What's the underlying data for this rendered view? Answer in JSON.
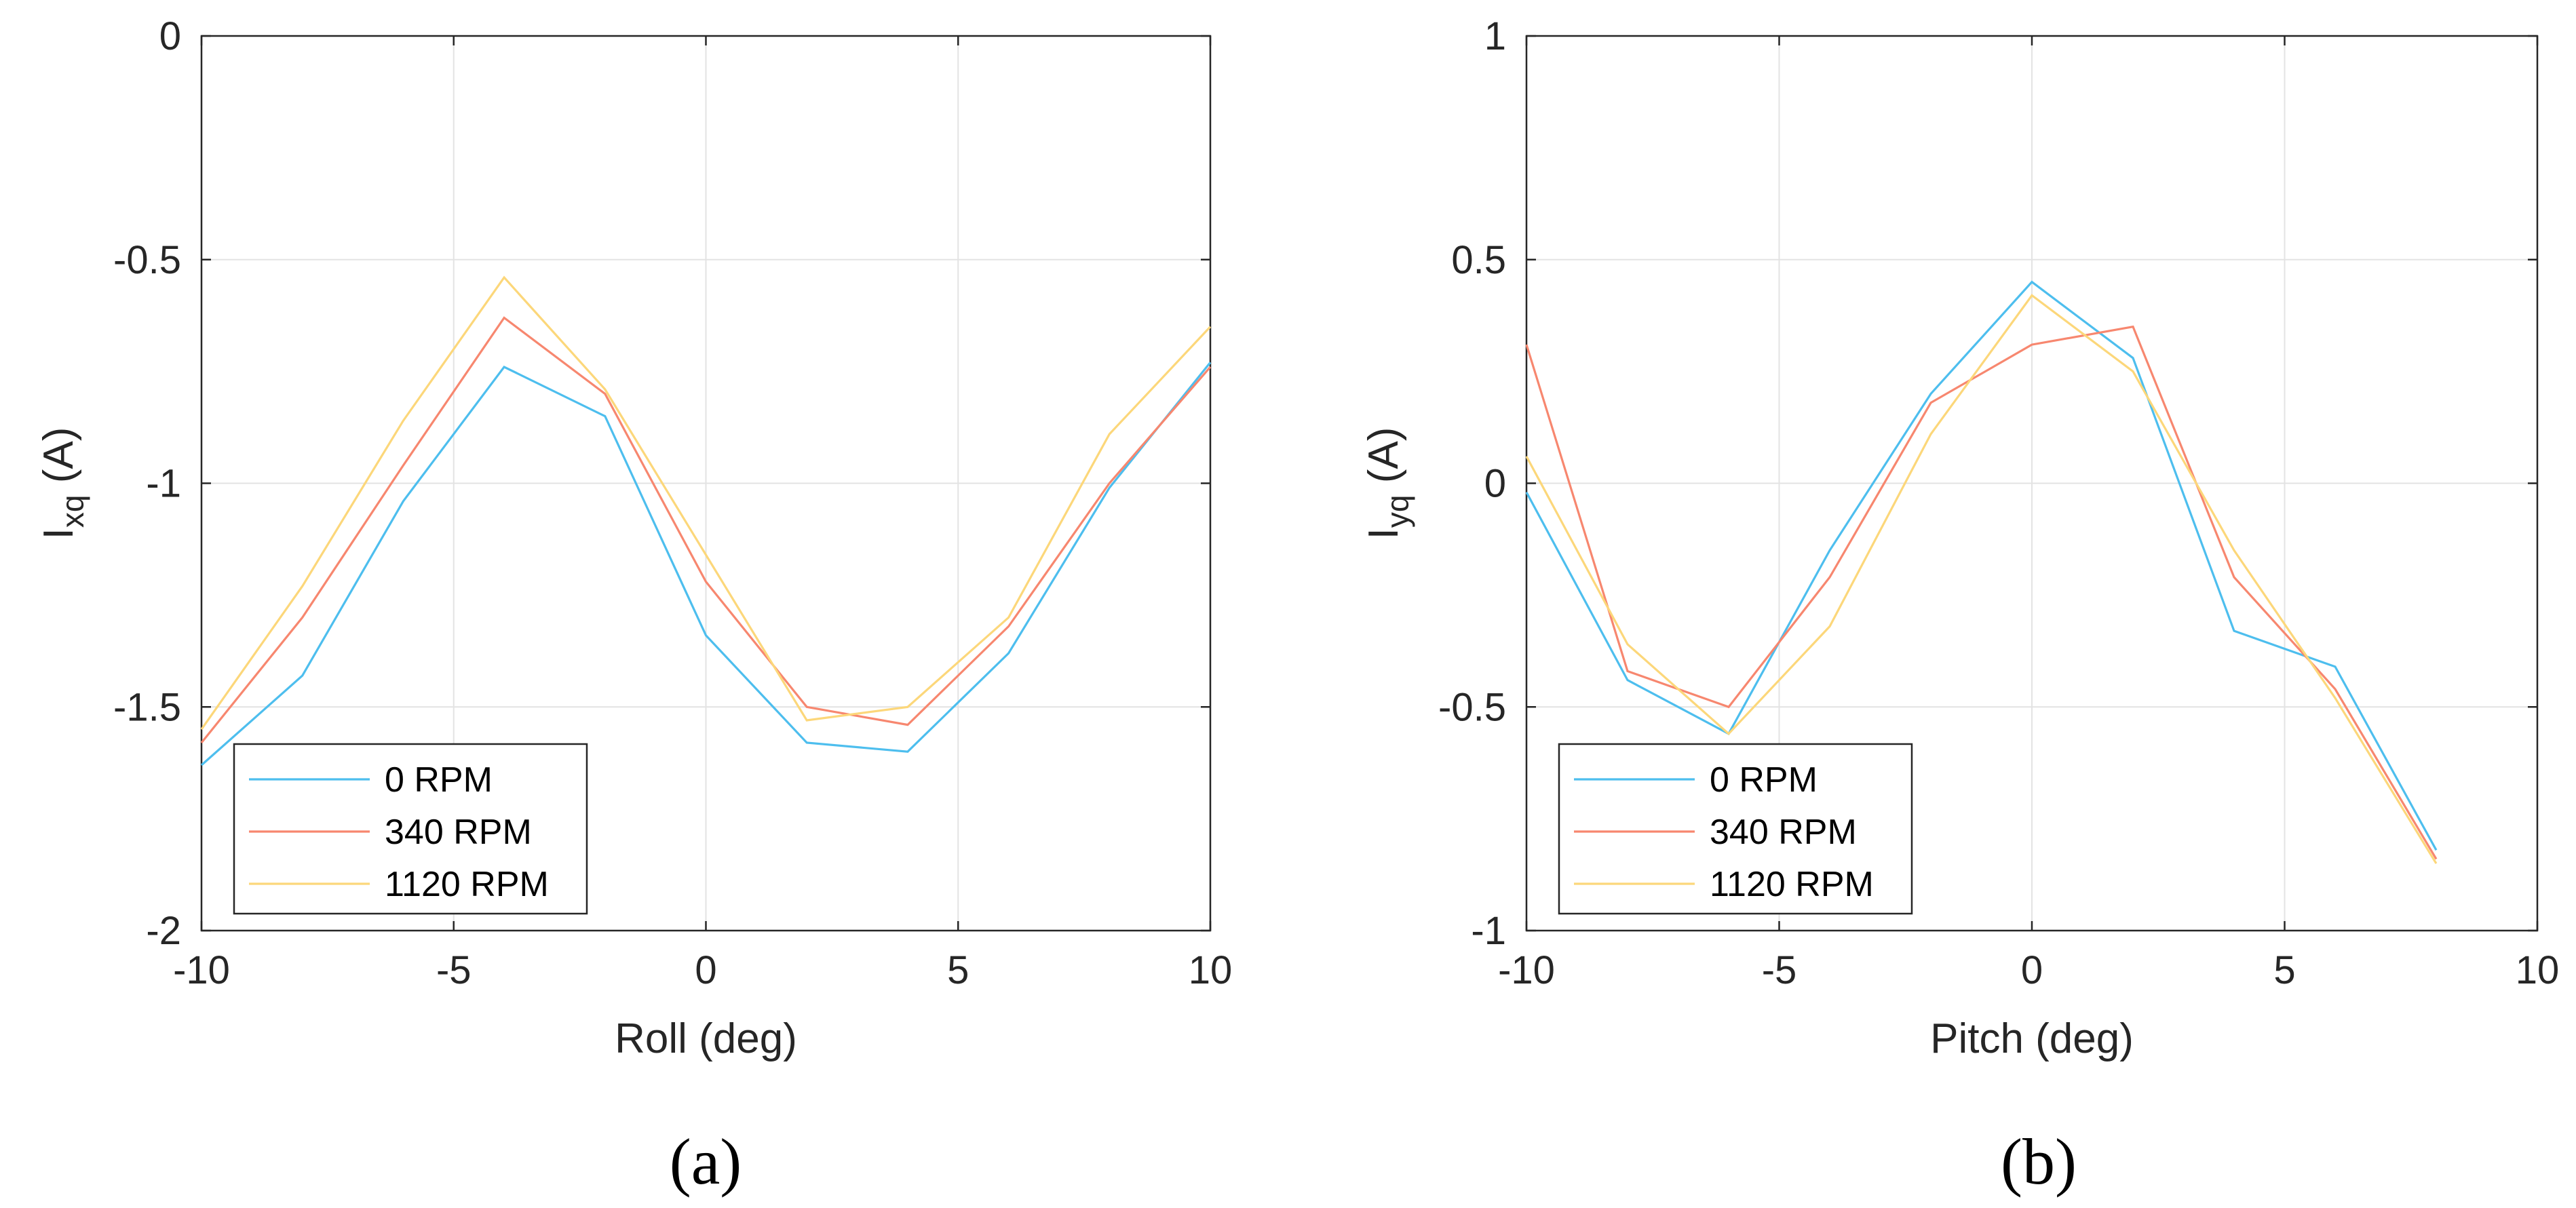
{
  "colors": {
    "series0": "#4DBEEE",
    "series1": "#F7876F",
    "series2": "#FCD77A"
  },
  "chart_data": [
    {
      "type": "line",
      "caption": "(a)",
      "xlabel": "Roll (deg)",
      "ylabel_main": "I",
      "ylabel_sub": "xq",
      "ylabel_unit": " (A)",
      "xlim": [
        -10,
        10
      ],
      "ylim": [
        -2,
        0
      ],
      "xticks": [
        -10,
        -5,
        0,
        5,
        10
      ],
      "yticks": [
        -2,
        -1.5,
        -1,
        -0.5,
        0
      ],
      "xtick_labels": [
        "-10",
        "-5",
        "0",
        "5",
        "10"
      ],
      "ytick_labels": [
        "-2",
        "-1.5",
        "-1",
        "-0.5",
        "0"
      ],
      "grid": true,
      "legend_position": "bottom-left",
      "x": [
        -10,
        -8,
        -6,
        -4,
        -2,
        0,
        2,
        4,
        6,
        8,
        10
      ],
      "series": [
        {
          "name": "0 RPM",
          "values": [
            -1.63,
            -1.43,
            -1.04,
            -0.74,
            -0.85,
            -1.34,
            -1.58,
            -1.6,
            -1.38,
            -1.01,
            -0.73
          ]
        },
        {
          "name": "340 RPM",
          "values": [
            -1.58,
            -1.3,
            -0.96,
            -0.63,
            -0.8,
            -1.22,
            -1.5,
            -1.54,
            -1.32,
            -1.0,
            -0.74
          ]
        },
        {
          "name": "1120 RPM",
          "values": [
            -1.55,
            -1.23,
            -0.86,
            -0.54,
            -0.79,
            -1.16,
            -1.53,
            -1.5,
            -1.3,
            -0.89,
            -0.65
          ]
        }
      ]
    },
    {
      "type": "line",
      "caption": "(b)",
      "xlabel": "Pitch (deg)",
      "ylabel_main": "I",
      "ylabel_sub": "yq",
      "ylabel_unit": " (A)",
      "xlim": [
        -10,
        10
      ],
      "ylim": [
        -1,
        1
      ],
      "xticks": [
        -10,
        -5,
        0,
        5,
        10
      ],
      "yticks": [
        -1,
        -0.5,
        0,
        0.5,
        1
      ],
      "xtick_labels": [
        "-10",
        "-5",
        "0",
        "5",
        "10"
      ],
      "ytick_labels": [
        "-1",
        "-0.5",
        "0",
        "0.5",
        "1"
      ],
      "grid": true,
      "legend_position": "bottom-left",
      "x": [
        -10,
        -8,
        -6,
        -4,
        -2,
        0,
        2,
        4,
        6,
        8
      ],
      "series": [
        {
          "name": "0 RPM",
          "values": [
            -0.02,
            -0.44,
            -0.56,
            -0.15,
            0.2,
            0.45,
            0.28,
            -0.33,
            -0.41,
            -0.82
          ]
        },
        {
          "name": "340 RPM",
          "values": [
            0.31,
            -0.42,
            -0.5,
            -0.21,
            0.18,
            0.31,
            0.35,
            -0.21,
            -0.46,
            -0.84
          ]
        },
        {
          "name": "1120 RPM",
          "values": [
            0.06,
            -0.36,
            -0.56,
            -0.32,
            0.11,
            0.42,
            0.25,
            -0.15,
            -0.48,
            -0.85
          ]
        }
      ]
    }
  ]
}
